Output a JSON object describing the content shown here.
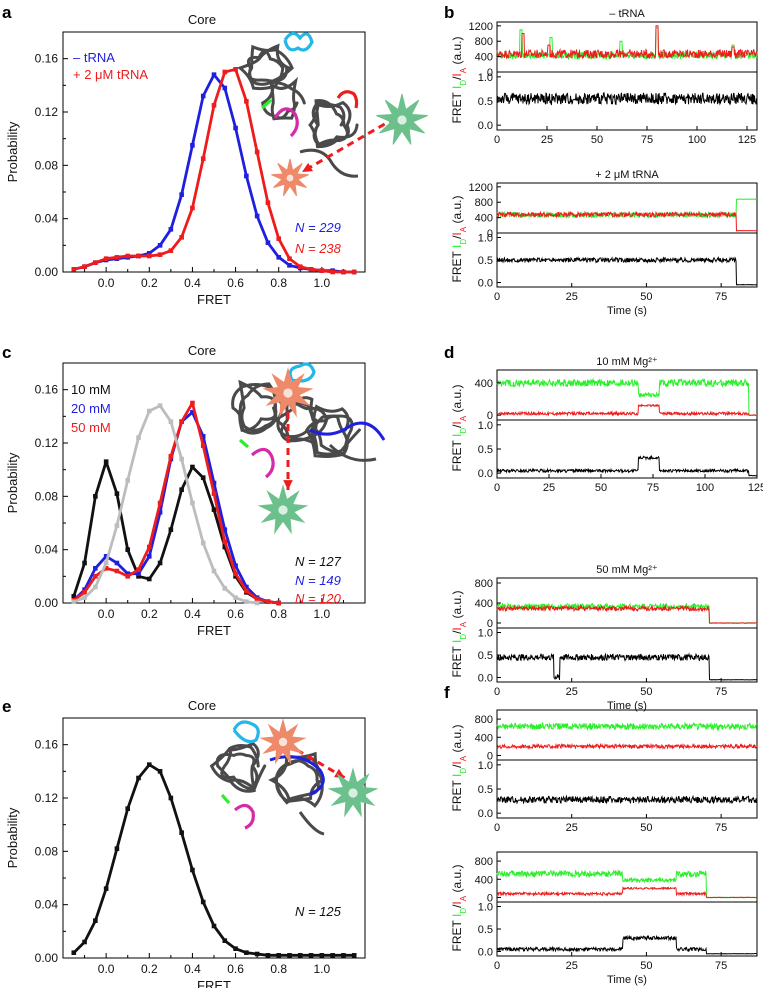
{
  "colors": {
    "blue": "#1f1fe0",
    "red": "#ee1c1c",
    "black": "#111111",
    "gray": "#bdbdbd",
    "green": "#2bef2b",
    "magenta": "#d62aa9",
    "cyan": "#25b7e8",
    "rna": "#4a4a4a",
    "donor": "#ee8a6a",
    "acceptor": "#6cc08c"
  },
  "panel_labels": [
    "a",
    "b",
    "c",
    "d",
    "e",
    "f"
  ],
  "chart_data": [
    {
      "id": "a",
      "type": "line",
      "title": "Core",
      "xlabel": "FRET",
      "ylabel": "Probability",
      "xlim": [
        -0.2,
        1.2
      ],
      "ylim": [
        0,
        0.18
      ],
      "xticks": [
        "0.0",
        "0.2",
        "0.4",
        "0.6",
        "0.8",
        "1.0"
      ],
      "yticks": [
        "0.00",
        "0.04",
        "0.08",
        "0.12",
        "0.16"
      ],
      "legend": [
        "– tRNA",
        "+ 2 μM tRNA"
      ],
      "n_labels": [
        "N = 229",
        "N = 238"
      ],
      "series": [
        {
          "name": "– tRNA",
          "color": "blue",
          "x": [
            -0.15,
            -0.1,
            -0.05,
            0,
            0.05,
            0.1,
            0.15,
            0.2,
            0.25,
            0.3,
            0.35,
            0.4,
            0.45,
            0.5,
            0.55,
            0.6,
            0.65,
            0.7,
            0.75,
            0.8,
            0.85,
            0.9,
            0.95,
            1.0,
            1.05,
            1.1,
            1.15
          ],
          "y": [
            0.002,
            0.004,
            0.007,
            0.009,
            0.01,
            0.011,
            0.012,
            0.014,
            0.02,
            0.032,
            0.058,
            0.095,
            0.132,
            0.148,
            0.138,
            0.108,
            0.072,
            0.042,
            0.022,
            0.011,
            0.005,
            0.003,
            0.002,
            0.001,
            0.001,
            0,
            0
          ]
        },
        {
          "name": "+ 2 μM tRNA",
          "color": "red",
          "x": [
            -0.15,
            -0.1,
            -0.05,
            0,
            0.05,
            0.1,
            0.15,
            0.2,
            0.25,
            0.3,
            0.35,
            0.4,
            0.45,
            0.5,
            0.55,
            0.6,
            0.65,
            0.7,
            0.75,
            0.8,
            0.85,
            0.9,
            0.95,
            1.0,
            1.05,
            1.1,
            1.15
          ],
          "y": [
            0.002,
            0.004,
            0.007,
            0.01,
            0.011,
            0.012,
            0.012,
            0.012,
            0.013,
            0.016,
            0.026,
            0.048,
            0.085,
            0.125,
            0.15,
            0.152,
            0.128,
            0.09,
            0.052,
            0.025,
            0.01,
            0.004,
            0.002,
            0.001,
            0,
            0,
            0
          ]
        }
      ]
    },
    {
      "id": "c",
      "type": "line",
      "title": "Core",
      "xlabel": "FRET",
      "ylabel": "Probability",
      "xlim": [
        -0.2,
        1.2
      ],
      "ylim": [
        0,
        0.18
      ],
      "xticks": [
        "0.0",
        "0.2",
        "0.4",
        "0.6",
        "0.8",
        "1.0"
      ],
      "yticks": [
        "0.00",
        "0.04",
        "0.08",
        "0.12",
        "0.16"
      ],
      "legend": [
        "10 mM",
        "20 mM",
        "50 mM"
      ],
      "n_labels": [
        "N = 127",
        "N = 149",
        "N = 120"
      ],
      "series": [
        {
          "name": "10 mM",
          "color": "black",
          "x": [
            -0.15,
            -0.1,
            -0.05,
            0,
            0.05,
            0.1,
            0.15,
            0.2,
            0.25,
            0.3,
            0.35,
            0.4,
            0.45,
            0.5,
            0.55,
            0.6,
            0.65,
            0.7,
            0.75,
            0.8
          ],
          "y": [
            0.005,
            0.03,
            0.08,
            0.106,
            0.082,
            0.04,
            0.02,
            0.018,
            0.03,
            0.055,
            0.085,
            0.102,
            0.094,
            0.07,
            0.042,
            0.02,
            0.008,
            0.003,
            0.001,
            0
          ]
        },
        {
          "name": "20 mM",
          "color": "blue",
          "x": [
            -0.15,
            -0.1,
            -0.05,
            0,
            0.05,
            0.1,
            0.15,
            0.2,
            0.25,
            0.3,
            0.35,
            0.4,
            0.45,
            0.5,
            0.55,
            0.6,
            0.65,
            0.7,
            0.75,
            0.8
          ],
          "y": [
            0.002,
            0.01,
            0.026,
            0.035,
            0.03,
            0.022,
            0.022,
            0.035,
            0.068,
            0.108,
            0.136,
            0.143,
            0.125,
            0.09,
            0.055,
            0.028,
            0.012,
            0.004,
            0.001,
            0
          ]
        },
        {
          "name": "50 mM",
          "color": "red",
          "x": [
            -0.15,
            -0.1,
            -0.05,
            0,
            0.05,
            0.1,
            0.15,
            0.2,
            0.25,
            0.3,
            0.35,
            0.4,
            0.45,
            0.5,
            0.55,
            0.6,
            0.65,
            0.7,
            0.75,
            0.8
          ],
          "y": [
            0.002,
            0.008,
            0.02,
            0.026,
            0.024,
            0.02,
            0.025,
            0.042,
            0.075,
            0.11,
            0.136,
            0.15,
            0.118,
            0.082,
            0.046,
            0.022,
            0.009,
            0.003,
            0.001,
            0
          ]
        },
        {
          "name": "",
          "color": "gray",
          "x": [
            -0.15,
            -0.1,
            -0.05,
            0,
            0.05,
            0.1,
            0.15,
            0.2,
            0.25,
            0.3,
            0.35,
            0.4,
            0.45,
            0.5,
            0.55,
            0.6,
            0.65,
            0.7
          ],
          "y": [
            0.001,
            0.004,
            0.012,
            0.03,
            0.058,
            0.092,
            0.124,
            0.144,
            0.148,
            0.136,
            0.108,
            0.075,
            0.045,
            0.024,
            0.011,
            0.004,
            0.001,
            0
          ]
        }
      ]
    },
    {
      "id": "e",
      "type": "line",
      "title": "Core",
      "xlabel": "FRET",
      "ylabel": "Probability",
      "xlim": [
        -0.2,
        1.2
      ],
      "ylim": [
        0,
        0.18
      ],
      "xticks": [
        "0.0",
        "0.2",
        "0.4",
        "0.6",
        "0.8",
        "1.0"
      ],
      "yticks": [
        "0.00",
        "0.04",
        "0.08",
        "0.12",
        "0.16"
      ],
      "n_labels": [
        "N = 125"
      ],
      "series": [
        {
          "name": "",
          "color": "black",
          "x": [
            -0.15,
            -0.1,
            -0.05,
            0,
            0.05,
            0.1,
            0.15,
            0.2,
            0.25,
            0.3,
            0.35,
            0.4,
            0.45,
            0.5,
            0.55,
            0.6,
            0.65,
            0.7,
            0.75,
            0.8,
            0.85,
            0.9,
            0.95,
            1.0,
            1.05,
            1.1,
            1.15
          ],
          "y": [
            0.004,
            0.012,
            0.028,
            0.052,
            0.082,
            0.112,
            0.135,
            0.145,
            0.14,
            0.12,
            0.094,
            0.066,
            0.042,
            0.024,
            0.013,
            0.007,
            0.004,
            0.003,
            0.002,
            0.002,
            0.002,
            0.002,
            0.002,
            0.002,
            0.002,
            0.002,
            0.002
          ]
        }
      ]
    },
    {
      "id": "b1",
      "type": "line",
      "title": "– tRNA",
      "xlim": [
        0,
        130
      ],
      "xticks": [
        "0",
        "25",
        "50",
        "75",
        "100",
        "125"
      ],
      "intensity": {
        "ylabel_parts": [
          "I",
          "D",
          "/",
          "I",
          "A",
          " (a.u.)"
        ],
        "ylim": [
          0,
          1300
        ],
        "yticks": [
          "0",
          "400",
          "800",
          "1200"
        ],
        "donor": {
          "base": 430,
          "noise": 90,
          "spikes": [
            [
              12,
              1100
            ],
            [
              27,
              900
            ],
            [
              62,
              800
            ],
            [
              80,
              1150
            ],
            [
              118,
              700
            ]
          ],
          "end": 130
        },
        "acceptor": {
          "base": 470,
          "noise": 110,
          "spikes": [
            [
              13,
              1000
            ],
            [
              26,
              700
            ],
            [
              80,
              1200
            ],
            [
              118,
              650
            ]
          ],
          "end": 130
        }
      },
      "fret": {
        "ylabel": "FRET",
        "ylim": [
          -0.1,
          1.1
        ],
        "yticks": [
          "0.0",
          "0.5",
          "1.0"
        ],
        "base": 0.55,
        "noise": 0.12,
        "events": [],
        "end": 130
      }
    },
    {
      "id": "b2",
      "type": "line",
      "title": "+ 2 μM tRNA",
      "xlabel": "Time (s)",
      "xlim": [
        0,
        87
      ],
      "xticks": [
        "0",
        "25",
        "50",
        "75"
      ],
      "intensity": {
        "ylabel_parts": [
          "I",
          "D",
          "/",
          "I",
          "A",
          " (a.u.)"
        ],
        "ylim": [
          0,
          1300
        ],
        "yticks": [
          "0",
          "400",
          "800",
          "1200"
        ],
        "donor": {
          "base": 470,
          "noise": 70,
          "end": 80,
          "after": 880
        },
        "acceptor": {
          "base": 480,
          "noise": 60,
          "end": 80,
          "after": 60
        }
      },
      "fret": {
        "ylabel": "FRET",
        "ylim": [
          -0.1,
          1.1
        ],
        "yticks": [
          "0.0",
          "0.5",
          "1.0"
        ],
        "base": 0.5,
        "noise": 0.05,
        "events": [],
        "end": 80,
        "after": -0.05
      }
    },
    {
      "id": "d1",
      "type": "line",
      "title": "10 mM Mg²⁺",
      "xlim": [
        0,
        125
      ],
      "xticks": [
        "0",
        "25",
        "50",
        "75",
        "100",
        "125"
      ],
      "intensity": {
        "ylabel_parts": [
          "I",
          "D",
          "/",
          "I",
          "A",
          " (a.u.)"
        ],
        "ylim": [
          -60,
          560
        ],
        "yticks": [
          "0",
          "400"
        ],
        "donor": {
          "base": 400,
          "noise": 45,
          "dip": [
            [
              68,
              78,
              250
            ]
          ],
          "end": 121,
          "after": 0
        },
        "acceptor": {
          "base": 20,
          "noise": 18,
          "dip": [
            [
              68,
              78,
              120
            ]
          ],
          "end": 121,
          "after": 0
        }
      },
      "fret": {
        "ylabel": "FRET",
        "ylim": [
          -0.1,
          1.1
        ],
        "yticks": [
          "0.0",
          "0.5",
          "1.0"
        ],
        "base": 0.05,
        "noise": 0.03,
        "events": [
          [
            68,
            78,
            0.32
          ]
        ],
        "end": 121,
        "after": -0.05
      }
    },
    {
      "id": "d2",
      "type": "line",
      "title": "50 mM Mg²⁺",
      "xlabel": "Time (s)",
      "xlim": [
        0,
        87
      ],
      "xticks": [
        "0",
        "25",
        "50",
        "75"
      ],
      "intensity": {
        "ylabel_parts": [
          "I",
          "D",
          "/",
          "I",
          "A",
          " (a.u.)"
        ],
        "ylim": [
          -100,
          900
        ],
        "yticks": [
          "0",
          "400",
          "800"
        ],
        "donor": {
          "base": 330,
          "noise": 55,
          "end": 71,
          "after": 0
        },
        "acceptor": {
          "base": 290,
          "noise": 45,
          "end": 71,
          "after": 0
        }
      },
      "fret": {
        "ylabel": "FRET",
        "ylim": [
          -0.1,
          1.1
        ],
        "yticks": [
          "0.0",
          "0.5",
          "1.0"
        ],
        "base": 0.45,
        "noise": 0.07,
        "events": [
          [
            19,
            21,
            0.0
          ]
        ],
        "end": 71,
        "after": -0.05
      }
    },
    {
      "id": "f1",
      "type": "line",
      "title": "",
      "xlim": [
        0,
        87
      ],
      "xticks": [
        "0",
        "25",
        "50",
        "75"
      ],
      "intensity": {
        "ylabel_parts": [
          "I",
          "D",
          "/",
          "I",
          "A",
          " (a.u.)"
        ],
        "ylim": [
          -100,
          1000
        ],
        "yticks": [
          "0",
          "400",
          "800"
        ],
        "donor": {
          "base": 640,
          "noise": 70,
          "end": 87
        },
        "acceptor": {
          "base": 200,
          "noise": 40,
          "end": 87
        }
      },
      "fret": {
        "ylabel": "FRET",
        "ylim": [
          -0.1,
          1.1
        ],
        "yticks": [
          "0.0",
          "0.5",
          "1.0"
        ],
        "base": 0.28,
        "noise": 0.07,
        "events": [],
        "end": 87
      }
    },
    {
      "id": "f2",
      "type": "line",
      "title": "",
      "xlabel": "Time (s)",
      "xlim": [
        0,
        87
      ],
      "xticks": [
        "0",
        "25",
        "50",
        "75"
      ],
      "intensity": {
        "ylabel_parts": [
          "I",
          "D",
          "/",
          "I",
          "A",
          " (a.u.)"
        ],
        "ylim": [
          -100,
          1000
        ],
        "yticks": [
          "0",
          "400",
          "800"
        ],
        "donor": {
          "base": 520,
          "noise": 70,
          "dip": [
            [
              42,
              60,
              380
            ]
          ],
          "end": 70,
          "after": 0
        },
        "acceptor": {
          "base": 80,
          "noise": 30,
          "dip": [
            [
              42,
              60,
              200
            ]
          ],
          "end": 70,
          "after": 0
        }
      },
      "fret": {
        "ylabel": "FRET",
        "ylim": [
          -0.1,
          1.1
        ],
        "yticks": [
          "0.0",
          "0.5",
          "1.0"
        ],
        "base": 0.05,
        "noise": 0.04,
        "events": [
          [
            42,
            60,
            0.3
          ]
        ],
        "end": 70,
        "after": -0.05
      }
    }
  ]
}
